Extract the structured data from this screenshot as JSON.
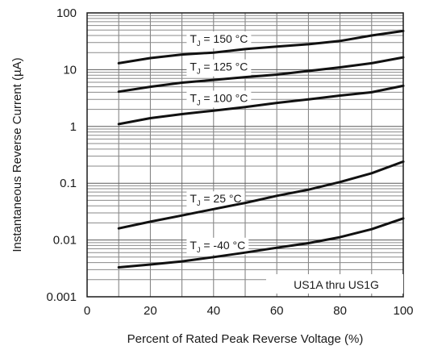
{
  "chart_data": {
    "type": "line",
    "title": "",
    "xlabel": "Percent of Rated Peak Reverse Voltage (%)",
    "ylabel": "Instantaneous Reverse Current (µA)",
    "xlim": [
      0,
      100
    ],
    "ylim": [
      0.001,
      100
    ],
    "y_scale": "log",
    "grid": true,
    "x_ticks": [
      "0",
      "20",
      "40",
      "60",
      "80",
      "100"
    ],
    "y_ticks": [
      "0.001",
      "0.01",
      "0.1",
      "1",
      "10",
      "100"
    ],
    "note": "US1A thru US1G",
    "series": [
      {
        "label_main": "T",
        "label_sub": "J",
        "label_rest": " = 150 °C",
        "x": [
          10,
          20,
          30,
          40,
          50,
          60,
          70,
          80,
          90,
          100
        ],
        "y": [
          13,
          16,
          18.5,
          20,
          23,
          25.5,
          28,
          32,
          40,
          48
        ]
      },
      {
        "label_main": "T",
        "label_sub": "J",
        "label_rest": " = 125 °C",
        "x": [
          10,
          20,
          30,
          40,
          50,
          60,
          70,
          80,
          90,
          100
        ],
        "y": [
          4.1,
          5,
          5.9,
          6.6,
          7.4,
          8.2,
          9.5,
          11,
          13,
          16.5
        ]
      },
      {
        "label_main": "T",
        "label_sub": "J",
        "label_rest": " = 100 °C",
        "x": [
          10,
          20,
          30,
          40,
          50,
          60,
          70,
          80,
          90,
          100
        ],
        "y": [
          1.1,
          1.4,
          1.65,
          1.9,
          2.2,
          2.6,
          3.0,
          3.5,
          4.0,
          5.2
        ]
      },
      {
        "label_main": "T",
        "label_sub": "J",
        "label_rest": " = 25 °C",
        "x": [
          10,
          20,
          30,
          40,
          50,
          60,
          70,
          80,
          90,
          100
        ],
        "y": [
          0.016,
          0.021,
          0.027,
          0.035,
          0.045,
          0.06,
          0.077,
          0.105,
          0.15,
          0.24
        ]
      },
      {
        "label_main": "T",
        "label_sub": "J",
        "label_rest": " = -40 °C",
        "x": [
          10,
          20,
          30,
          40,
          50,
          60,
          70,
          80,
          90,
          100
        ],
        "y": [
          0.0033,
          0.0037,
          0.0042,
          0.005,
          0.006,
          0.0073,
          0.0088,
          0.0112,
          0.0155,
          0.024
        ]
      }
    ]
  }
}
